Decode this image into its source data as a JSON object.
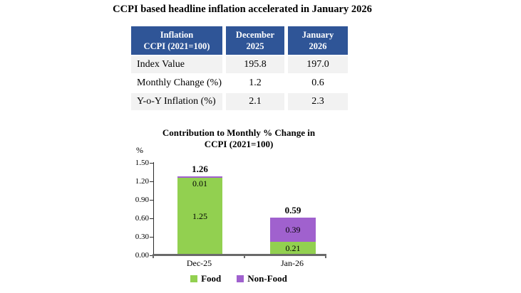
{
  "page": {
    "title": "CCPI based headline inflation accelerated in January 2026"
  },
  "table": {
    "header_bg": "#2f5597",
    "band_bg": "#f2f2f2",
    "headers": [
      "Inflation\nCCPI (2021=100)",
      "December\n2025",
      "January\n2026"
    ],
    "rows": [
      {
        "label": "Index Value",
        "dec": "195.8",
        "jan": "197.0"
      },
      {
        "label": "Monthly Change (%)",
        "dec": "1.2",
        "jan": "0.6"
      },
      {
        "label": "Y-o-Y Inflation (%)",
        "dec": "2.1",
        "jan": "2.3"
      }
    ]
  },
  "chart_data": {
    "type": "bar",
    "subtype": "stacked",
    "title": "Contribution to Monthly % Change in\nCCPI (2021=100)",
    "unit": "%",
    "categories": [
      "Dec-25",
      "Jan-26"
    ],
    "series": [
      {
        "name": "Food",
        "color": "#92d050",
        "values": [
          1.25,
          0.21
        ],
        "labels": [
          "1.25",
          "0.21"
        ]
      },
      {
        "name": "Non-Food",
        "color": "#a061ce",
        "values": [
          0.01,
          0.39
        ],
        "labels": [
          "0.01",
          "0.39"
        ]
      }
    ],
    "totals": [
      "1.26",
      "0.59"
    ],
    "yticks": [
      "0.00",
      "0.30",
      "0.60",
      "0.90",
      "1.20",
      "1.50"
    ],
    "ylim": [
      0,
      1.5
    ],
    "grid": false,
    "legend_position": "bottom"
  }
}
